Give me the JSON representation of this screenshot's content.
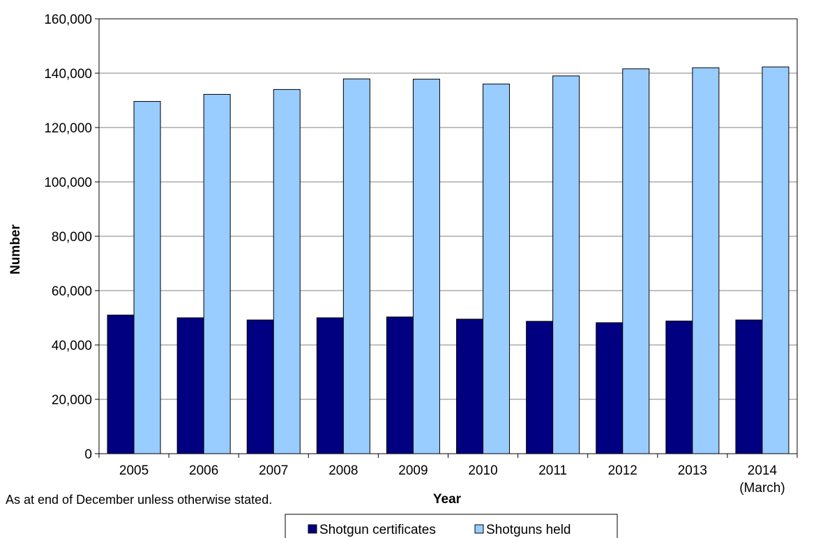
{
  "chart_data": {
    "type": "bar",
    "categories": [
      "2005",
      "2006",
      "2007",
      "2008",
      "2009",
      "2010",
      "2011",
      "2012",
      "2013",
      "2014"
    ],
    "category_sublabels": [
      "",
      "",
      "",
      "",
      "",
      "",
      "",
      "",
      "",
      "(March)"
    ],
    "series": [
      {
        "name": "Shotgun certificates",
        "color": "#000080",
        "values": [
          51000,
          50000,
          49200,
          50000,
          50300,
          49500,
          48700,
          48200,
          48800,
          49200
        ]
      },
      {
        "name": "Shotguns held",
        "color": "#99CCFF",
        "values": [
          129600,
          132200,
          134000,
          137900,
          137800,
          136000,
          139000,
          141600,
          142000,
          142300
        ]
      }
    ],
    "title": "",
    "xlabel": "Year",
    "ylabel": "Number",
    "ylim": [
      0,
      160000
    ],
    "yticks": [
      "0",
      "20,000",
      "40,000",
      "60,000",
      "80,000",
      "100,000",
      "120,000",
      "140,000",
      "160,000"
    ],
    "grid": true,
    "legend_position": "bottom",
    "note": "As at end of December unless otherwise stated."
  }
}
